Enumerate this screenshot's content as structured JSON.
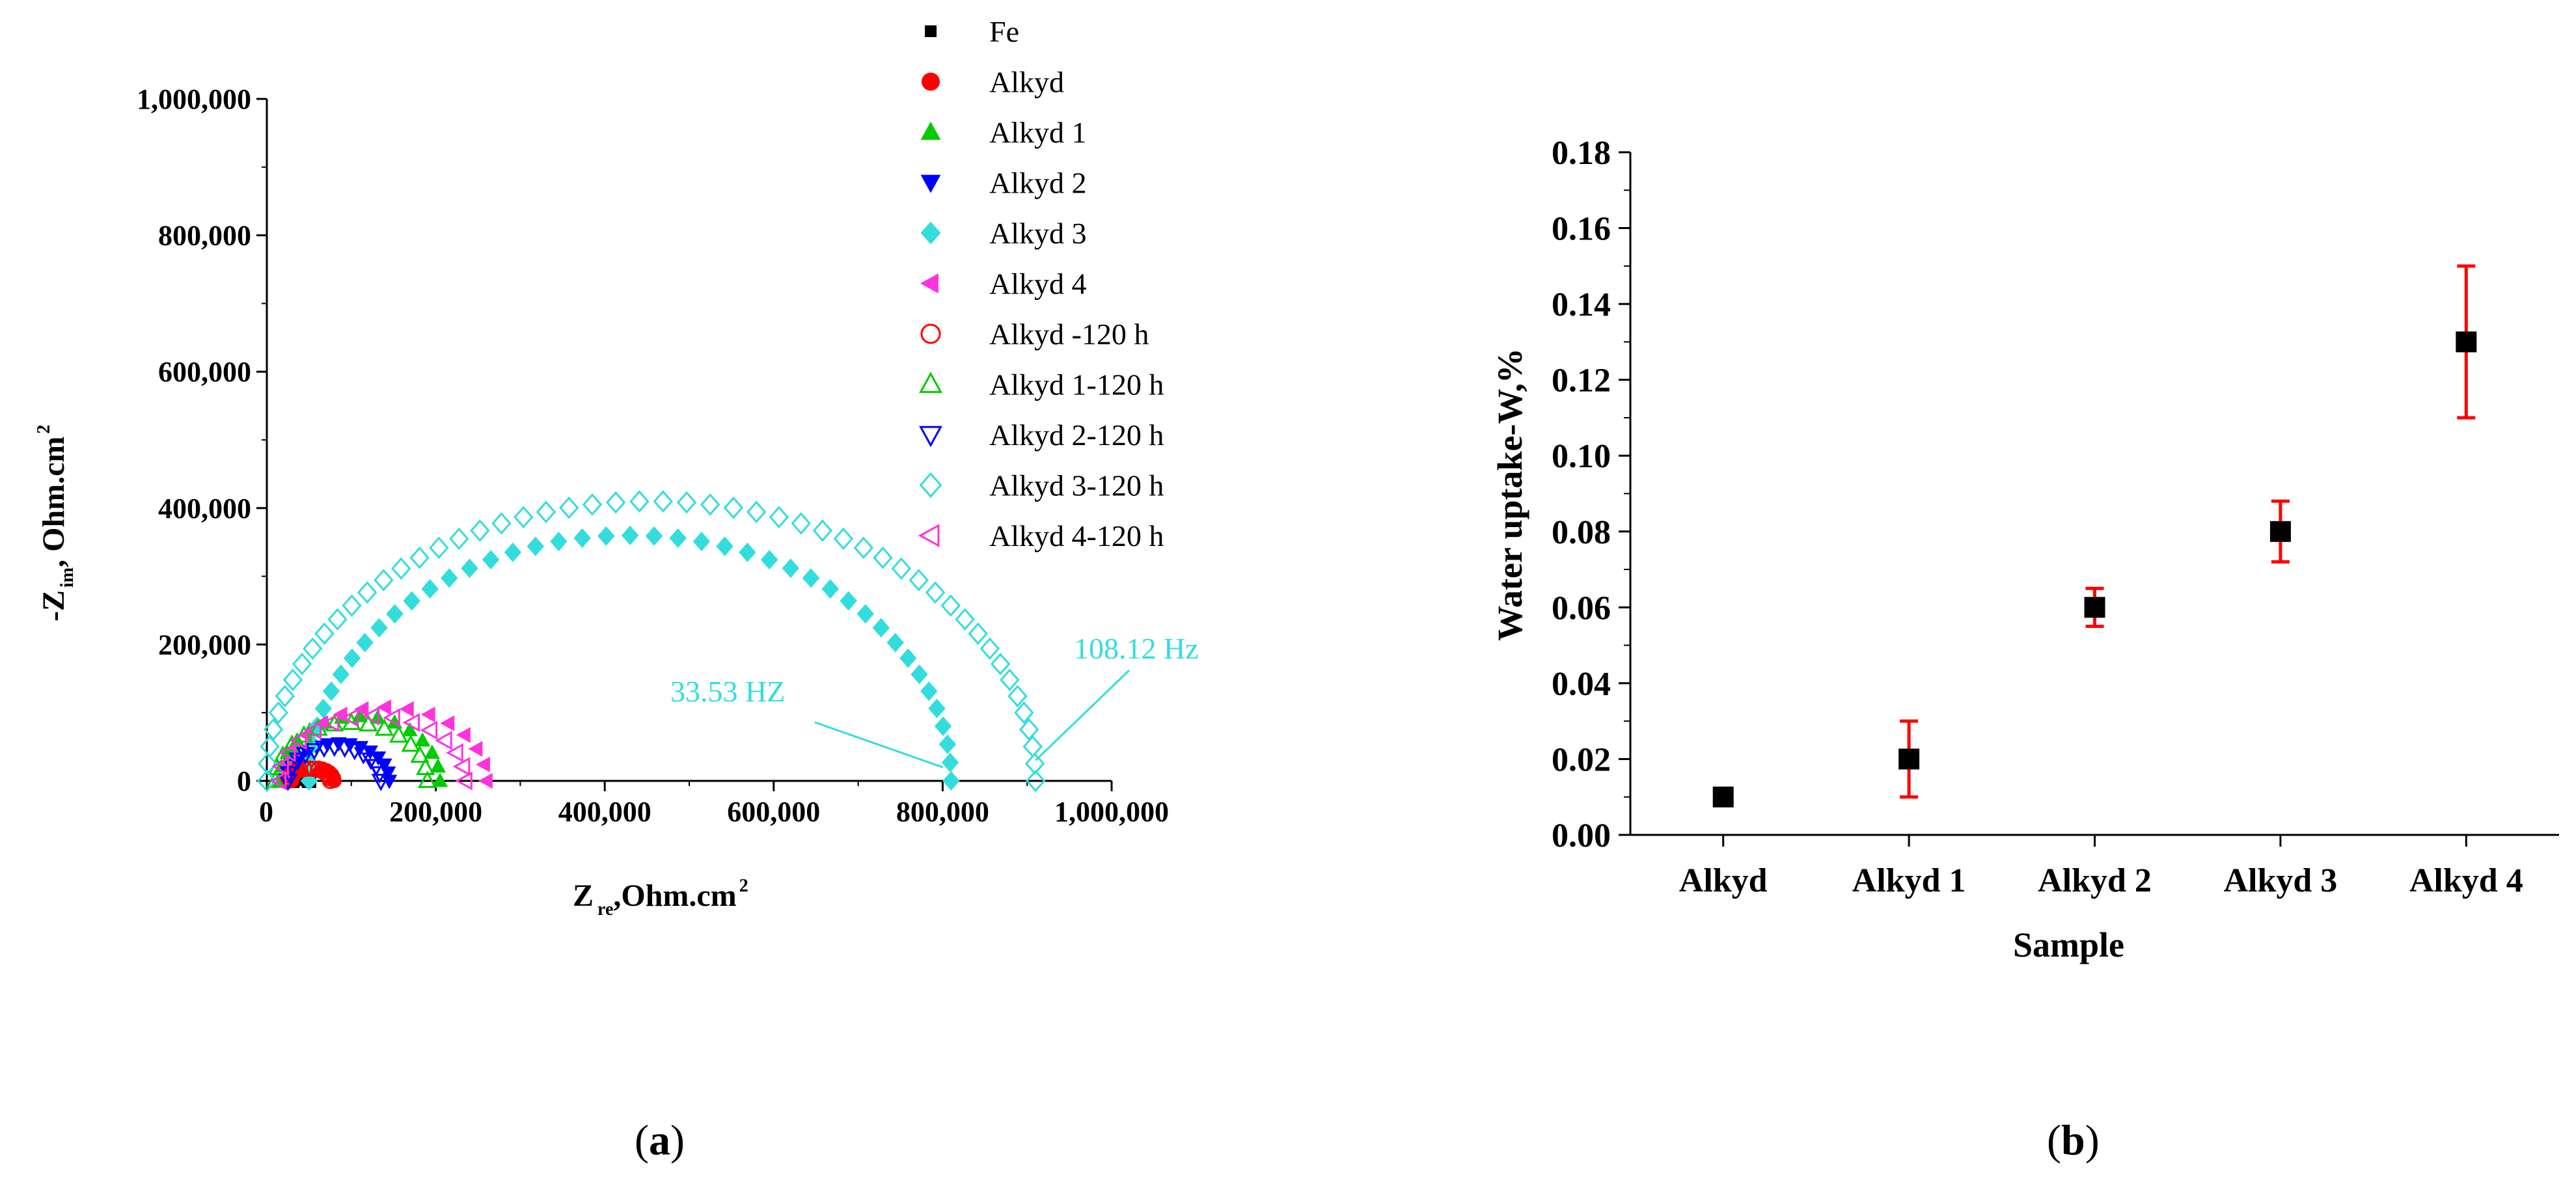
{
  "figure": {
    "panel_a_label": "a",
    "panel_b_label": "b"
  },
  "colors": {
    "black": "#000000",
    "red": "#ff0000",
    "green": "#00cc00",
    "blue": "#0000ff",
    "cyan": "#33dddd",
    "magenta": "#ff33dd",
    "errorbar": "#ff0000"
  },
  "chart_data": [
    {
      "panel": "a",
      "type": "scatter",
      "xlabel_main": "Z",
      "xlabel_sub": "re",
      "xlabel_rest": ",Ohm.cm",
      "xlabel_sup": "2",
      "ylabel_main": "-Z",
      "ylabel_sub": "im",
      "ylabel_rest": ", Ohm.cm",
      "ylabel_sup": "2",
      "xlim": [
        0,
        1000000
      ],
      "ylim": [
        0,
        1000000
      ],
      "xticks": [
        0,
        200000,
        400000,
        600000,
        800000,
        1000000
      ],
      "yticks": [
        0,
        200000,
        400000,
        600000,
        800000,
        1000000
      ],
      "xtick_labels": [
        "0",
        "200,000",
        "400,000",
        "600,000",
        "800,000",
        "1,000,000"
      ],
      "ytick_labels": [
        "0",
        "200,000",
        "400,000",
        "600,000",
        "800,000",
        "1,000,000"
      ],
      "legend_position": "top-right",
      "series": [
        {
          "name": "Fe",
          "color": "#000000",
          "marker": "square-filled",
          "center_x": 40000,
          "radius_x": 10000,
          "peak_y": 6000,
          "x_start": 30000
        },
        {
          "name": "Alkyd",
          "color": "#ff0000",
          "marker": "circle-filled",
          "center_x": 55000,
          "radius_x": 25000,
          "peak_y": 20000,
          "x_start": 30000
        },
        {
          "name": "Alkyd 1",
          "color": "#00cc00",
          "marker": "triangle-up-filled",
          "center_x": 110000,
          "radius_x": 95000,
          "peak_y": 95000,
          "x_start": 15000
        },
        {
          "name": "Alkyd 2",
          "color": "#0000ff",
          "marker": "triangle-down-filled",
          "center_x": 85000,
          "radius_x": 60000,
          "peak_y": 55000,
          "x_start": 25000
        },
        {
          "name": "Alkyd 3",
          "color": "#33dddd",
          "marker": "diamond-filled",
          "center_x": 430000,
          "radius_x": 380000,
          "peak_y": 360000,
          "x_start": 50000
        },
        {
          "name": "Alkyd 4",
          "color": "#ff33dd",
          "marker": "triangle-left-filled",
          "center_x": 140000,
          "radius_x": 120000,
          "peak_y": 108000,
          "x_start": 20000
        },
        {
          "name": "Alkyd  -120 h",
          "color": "#ff0000",
          "marker": "circle-open",
          "center_x": 50000,
          "radius_x": 25000,
          "peak_y": 18000,
          "x_start": 25000
        },
        {
          "name": "Alkyd 1-120 h",
          "color": "#00cc00",
          "marker": "triangle-up-open",
          "center_x": 100000,
          "radius_x": 90000,
          "peak_y": 85000,
          "x_start": 10000
        },
        {
          "name": "Alkyd 2-120 h",
          "color": "#0000ff",
          "marker": "triangle-down-open",
          "center_x": 80000,
          "radius_x": 55000,
          "peak_y": 50000,
          "x_start": 25000
        },
        {
          "name": "Alkyd 3-120 h",
          "color": "#33dddd",
          "marker": "diamond-open",
          "center_x": 455000,
          "radius_x": 455000,
          "peak_y": 410000,
          "x_start": 0
        },
        {
          "name": "Alkyd 4-120 h",
          "color": "#ff33dd",
          "marker": "triangle-left-open",
          "center_x": 125000,
          "radius_x": 110000,
          "peak_y": 95000,
          "x_start": 15000
        }
      ],
      "annotations": [
        {
          "text": "33.53 HZ",
          "point_x": 800000,
          "point_y": 20000
        },
        {
          "text": "108.12 Hz",
          "point_x": 910000,
          "point_y": 30000
        }
      ]
    },
    {
      "panel": "b",
      "type": "scatter",
      "xlabel": "Sample",
      "ylabel": "Water uptake-W,%",
      "categories": [
        "Alkyd",
        "Alkyd 1",
        "Alkyd 2",
        "Alkyd 3",
        "Alkyd 4"
      ],
      "values": [
        0.01,
        0.02,
        0.06,
        0.08,
        0.13
      ],
      "error": [
        0.002,
        0.01,
        0.005,
        0.008,
        0.02
      ],
      "ylim": [
        0,
        0.18
      ],
      "yticks": [
        0,
        0.02,
        0.04,
        0.06,
        0.08,
        0.1,
        0.12,
        0.14,
        0.16,
        0.18
      ],
      "ytick_labels": [
        "0.00",
        "0.02",
        "0.04",
        "0.06",
        "0.08",
        "0.10",
        "0.12",
        "0.14",
        "0.16",
        "0.18"
      ],
      "marker": "square-filled",
      "marker_color": "#000000",
      "errorbar_color": "#ff0000"
    }
  ]
}
